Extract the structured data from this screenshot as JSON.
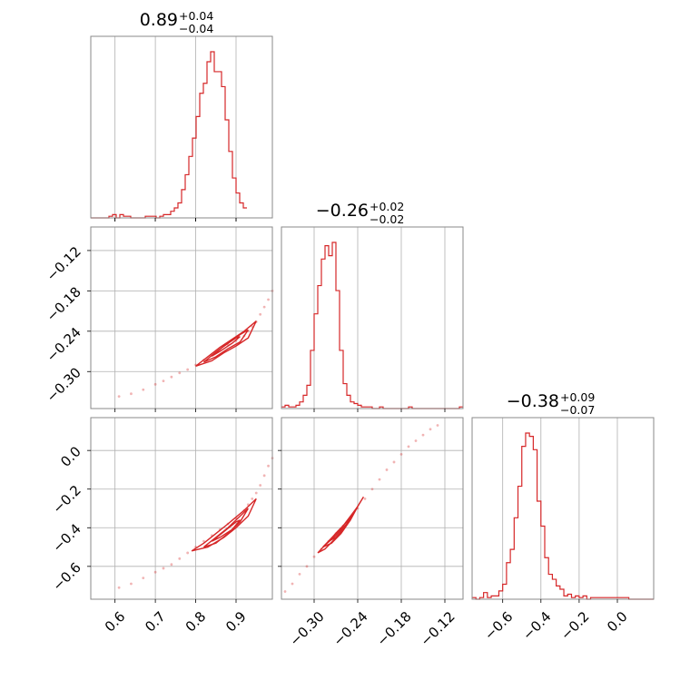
{
  "color": "#d62728",
  "chart_data": [
    {
      "type": "histogram",
      "panel": "diag-1",
      "title": {
        "median": "0.89",
        "upper": "+0.04",
        "lower": "−0.04"
      },
      "x_range": [
        0.54,
        0.99
      ],
      "x_ticks": [
        0.6,
        0.7,
        0.8,
        0.9
      ],
      "x_tick_labels": [
        "0.6",
        "0.7",
        "0.8",
        "0.9"
      ],
      "bin_start": 0.54,
      "bin_width": 0.009,
      "counts": [
        0,
        0,
        0,
        0,
        0,
        0.01,
        0.02,
        0,
        0.02,
        0.01,
        0.01,
        0,
        0,
        0,
        0,
        0.01,
        0.01,
        0.01,
        0,
        0.01,
        0.02,
        0.02,
        0.04,
        0.06,
        0.09,
        0.17,
        0.26,
        0.37,
        0.48,
        0.61,
        0.75,
        0.81,
        0.94,
        1.0,
        0.88,
        0.88,
        0.79,
        0.59,
        0.4,
        0.24,
        0.15,
        0.09,
        0.06
      ],
      "grid": true
    },
    {
      "type": "histogram",
      "panel": "diag-2",
      "title": {
        "median": "−0.26",
        "upper": "+0.02",
        "lower": "−0.02"
      },
      "x_range": [
        -0.345,
        -0.095
      ],
      "x_ticks": [
        -0.3,
        -0.24,
        -0.18,
        -0.12
      ],
      "x_tick_labels": [
        "−0.30",
        "−0.24",
        "−0.18",
        "−0.12"
      ],
      "bin_start": -0.345,
      "bin_width": 0.005,
      "counts": [
        0.01,
        0.02,
        0.01,
        0.01,
        0.02,
        0.04,
        0.08,
        0.14,
        0.35,
        0.57,
        0.74,
        0.9,
        0.98,
        0.92,
        1.0,
        0.71,
        0.35,
        0.15,
        0.08,
        0.04,
        0.03,
        0.02,
        0.01,
        0.01,
        0.01,
        0,
        0,
        0.01,
        0,
        0,
        0,
        0,
        0,
        0,
        0,
        0.01,
        0,
        0,
        0,
        0,
        0,
        0,
        0,
        0,
        0,
        0,
        0,
        0,
        0,
        0.01
      ],
      "grid": true
    },
    {
      "type": "histogram",
      "panel": "diag-3",
      "title": {
        "median": "−0.38",
        "upper": "+0.09",
        "lower": "−0.07"
      },
      "x_range": [
        -0.76,
        0.19
      ],
      "x_ticks": [
        -0.6,
        -0.4,
        -0.2,
        0.0
      ],
      "x_tick_labels": [
        "−0.6",
        "−0.4",
        "−0.2",
        "0.0"
      ],
      "bin_start": -0.76,
      "bin_width": 0.02,
      "counts": [
        0.01,
        0,
        0.01,
        0.04,
        0.01,
        0.02,
        0.02,
        0.05,
        0.09,
        0.22,
        0.3,
        0.49,
        0.68,
        0.92,
        1.0,
        0.98,
        0.9,
        0.59,
        0.44,
        0.25,
        0.15,
        0.12,
        0.08,
        0.06,
        0.02,
        0.03,
        0.01,
        0.02,
        0.01,
        0.02,
        0,
        0.01,
        0.01,
        0.01,
        0.01,
        0.01,
        0.01,
        0.01,
        0.01,
        0.01,
        0.01,
        0,
        0,
        0,
        0,
        0,
        0,
        0
      ],
      "grid": true
    },
    {
      "type": "scatter",
      "panel": "pair-2-1",
      "x_range": [
        0.54,
        0.99
      ],
      "y_range": [
        -0.355,
        -0.085
      ],
      "y_ticks": [
        -0.12,
        -0.18,
        -0.24,
        -0.3
      ],
      "y_tick_labels": [
        "−0.12",
        "−0.18",
        "−0.24",
        "−0.30"
      ],
      "samples": [
        [
          0.61,
          -0.337
        ],
        [
          0.64,
          -0.333
        ],
        [
          0.67,
          -0.327
        ],
        [
          0.7,
          -0.319
        ],
        [
          0.72,
          -0.314
        ],
        [
          0.74,
          -0.308
        ],
        [
          0.76,
          -0.302
        ],
        [
          0.78,
          -0.297
        ],
        [
          0.8,
          -0.29
        ],
        [
          0.82,
          -0.283
        ],
        [
          0.84,
          -0.276
        ],
        [
          0.86,
          -0.268
        ],
        [
          0.88,
          -0.26
        ],
        [
          0.9,
          -0.254
        ],
        [
          0.92,
          -0.247
        ],
        [
          0.93,
          -0.24
        ],
        [
          0.94,
          -0.233
        ],
        [
          0.95,
          -0.226
        ],
        [
          0.96,
          -0.215
        ],
        [
          0.97,
          -0.204
        ],
        [
          0.98,
          -0.193
        ],
        [
          0.99,
          -0.18
        ]
      ],
      "contours": [
        [
          [
            0.8,
            -0.292
          ],
          [
            0.83,
            -0.278
          ],
          [
            0.86,
            -0.264
          ],
          [
            0.89,
            -0.252
          ],
          [
            0.92,
            -0.24
          ],
          [
            0.95,
            -0.225
          ],
          [
            0.93,
            -0.25
          ],
          [
            0.9,
            -0.262
          ],
          [
            0.87,
            -0.272
          ],
          [
            0.84,
            -0.284
          ],
          [
            0.8,
            -0.292
          ]
        ],
        [
          [
            0.82,
            -0.286
          ],
          [
            0.85,
            -0.271
          ],
          [
            0.88,
            -0.258
          ],
          [
            0.91,
            -0.245
          ],
          [
            0.93,
            -0.238
          ],
          [
            0.91,
            -0.256
          ],
          [
            0.88,
            -0.266
          ],
          [
            0.85,
            -0.278
          ],
          [
            0.82,
            -0.286
          ]
        ],
        [
          [
            0.84,
            -0.277
          ],
          [
            0.87,
            -0.262
          ],
          [
            0.9,
            -0.25
          ],
          [
            0.91,
            -0.248
          ],
          [
            0.89,
            -0.258
          ],
          [
            0.86,
            -0.27
          ],
          [
            0.84,
            -0.277
          ]
        ]
      ],
      "grid": true
    },
    {
      "type": "scatter",
      "panel": "pair-3-1",
      "x_range": [
        0.54,
        0.99
      ],
      "y_range": [
        -0.77,
        0.17
      ],
      "y_ticks": [
        0.0,
        -0.2,
        -0.4,
        -0.6
      ],
      "y_tick_labels": [
        "0.0",
        "−0.2",
        "−0.4",
        "−0.6"
      ],
      "samples": [
        [
          0.61,
          -0.71
        ],
        [
          0.64,
          -0.69
        ],
        [
          0.67,
          -0.66
        ],
        [
          0.7,
          -0.63
        ],
        [
          0.72,
          -0.61
        ],
        [
          0.74,
          -0.59
        ],
        [
          0.76,
          -0.56
        ],
        [
          0.78,
          -0.53
        ],
        [
          0.8,
          -0.5
        ],
        [
          0.82,
          -0.47
        ],
        [
          0.84,
          -0.44
        ],
        [
          0.86,
          -0.41
        ],
        [
          0.88,
          -0.38
        ],
        [
          0.9,
          -0.35
        ],
        [
          0.92,
          -0.31
        ],
        [
          0.93,
          -0.28
        ],
        [
          0.94,
          -0.25
        ],
        [
          0.95,
          -0.22
        ],
        [
          0.96,
          -0.18
        ],
        [
          0.97,
          -0.13
        ],
        [
          0.98,
          -0.08
        ],
        [
          0.99,
          -0.04
        ]
      ],
      "contours": [
        [
          [
            0.79,
            -0.52
          ],
          [
            0.82,
            -0.48
          ],
          [
            0.85,
            -0.43
          ],
          [
            0.88,
            -0.38
          ],
          [
            0.92,
            -0.31
          ],
          [
            0.95,
            -0.25
          ],
          [
            0.93,
            -0.34
          ],
          [
            0.9,
            -0.4
          ],
          [
            0.87,
            -0.45
          ],
          [
            0.83,
            -0.5
          ],
          [
            0.79,
            -0.52
          ]
        ],
        [
          [
            0.82,
            -0.5
          ],
          [
            0.85,
            -0.45
          ],
          [
            0.88,
            -0.4
          ],
          [
            0.91,
            -0.34
          ],
          [
            0.93,
            -0.3
          ],
          [
            0.91,
            -0.37
          ],
          [
            0.88,
            -0.43
          ],
          [
            0.85,
            -0.48
          ],
          [
            0.82,
            -0.5
          ]
        ],
        [
          [
            0.84,
            -0.47
          ],
          [
            0.87,
            -0.42
          ],
          [
            0.9,
            -0.37
          ],
          [
            0.91,
            -0.36
          ],
          [
            0.89,
            -0.41
          ],
          [
            0.86,
            -0.45
          ],
          [
            0.84,
            -0.47
          ]
        ]
      ],
      "grid": true
    },
    {
      "type": "scatter",
      "panel": "pair-3-2",
      "x_range": [
        -0.345,
        -0.095
      ],
      "y_range": [
        -0.77,
        0.17
      ],
      "samples": [
        [
          -0.34,
          -0.73
        ],
        [
          -0.33,
          -0.69
        ],
        [
          -0.32,
          -0.64
        ],
        [
          -0.31,
          -0.6
        ],
        [
          -0.3,
          -0.55
        ],
        [
          -0.29,
          -0.51
        ],
        [
          -0.28,
          -0.47
        ],
        [
          -0.27,
          -0.43
        ],
        [
          -0.26,
          -0.39
        ],
        [
          -0.25,
          -0.35
        ],
        [
          -0.24,
          -0.3
        ],
        [
          -0.23,
          -0.25
        ],
        [
          -0.22,
          -0.2
        ],
        [
          -0.21,
          -0.15
        ],
        [
          -0.2,
          -0.1
        ],
        [
          -0.19,
          -0.06
        ],
        [
          -0.18,
          -0.02
        ],
        [
          -0.17,
          0.02
        ],
        [
          -0.16,
          0.05
        ],
        [
          -0.15,
          0.08
        ],
        [
          -0.14,
          0.11
        ],
        [
          -0.13,
          0.13
        ]
      ],
      "contours": [
        [
          [
            -0.295,
            -0.53
          ],
          [
            -0.285,
            -0.49
          ],
          [
            -0.27,
            -0.44
          ],
          [
            -0.255,
            -0.38
          ],
          [
            -0.24,
            -0.29
          ],
          [
            -0.232,
            -0.24
          ],
          [
            -0.245,
            -0.32
          ],
          [
            -0.258,
            -0.4
          ],
          [
            -0.272,
            -0.46
          ],
          [
            -0.285,
            -0.51
          ],
          [
            -0.295,
            -0.53
          ]
        ],
        [
          [
            -0.288,
            -0.5
          ],
          [
            -0.275,
            -0.45
          ],
          [
            -0.262,
            -0.4
          ],
          [
            -0.248,
            -0.33
          ],
          [
            -0.24,
            -0.29
          ],
          [
            -0.25,
            -0.36
          ],
          [
            -0.263,
            -0.43
          ],
          [
            -0.276,
            -0.48
          ],
          [
            -0.288,
            -0.5
          ]
        ],
        [
          [
            -0.28,
            -0.47
          ],
          [
            -0.268,
            -0.42
          ],
          [
            -0.255,
            -0.37
          ],
          [
            -0.25,
            -0.35
          ],
          [
            -0.258,
            -0.4
          ],
          [
            -0.27,
            -0.45
          ],
          [
            -0.28,
            -0.47
          ]
        ]
      ],
      "grid": true
    }
  ]
}
